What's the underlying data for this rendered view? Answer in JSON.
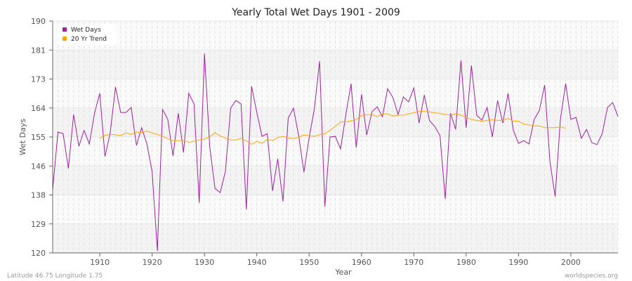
{
  "chart_data": {
    "type": "line",
    "title": "Yearly Total Wet Days 1901 - 2009",
    "xlabel": "Year",
    "ylabel": "Wet Days",
    "xlim": [
      1901,
      2009
    ],
    "ylim": [
      120,
      190
    ],
    "x_ticks": [
      1910,
      1920,
      1930,
      1940,
      1950,
      1960,
      1970,
      1980,
      1990,
      2000
    ],
    "y_ticks": [
      "120",
      "129",
      "138",
      "146",
      "155",
      "164",
      "173",
      "181",
      "190"
    ],
    "grid": true,
    "legend_position": "top-left",
    "series": [
      {
        "name": "Wet Days",
        "color": "#a020a0",
        "start_year": 1901,
        "values": [
          139.1,
          156.5,
          156,
          145.5,
          161.8,
          152.2,
          157,
          152.9,
          162.2,
          168.2,
          149.1,
          156.3,
          170.1,
          162.4,
          162.4,
          163.9,
          152.5,
          157.8,
          152.9,
          144.6,
          120.6,
          163.3,
          160.3,
          149.3,
          162.2,
          150.3,
          168.2,
          165,
          135.1,
          180.2,
          152.2,
          139.5,
          138.2,
          144.6,
          163.7,
          166,
          165,
          133.1,
          170.3,
          162.4,
          155.2,
          156,
          138.7,
          148.4,
          135.5,
          160.7,
          163.7,
          155.4,
          144.4,
          154.8,
          163.5,
          177.9,
          134,
          155,
          155.2,
          151.4,
          161.6,
          171.1,
          151.8,
          167.9,
          155.6,
          162.6,
          164.1,
          161.1,
          169.6,
          166.9,
          161.8,
          167.1,
          165.6,
          169.8,
          159.2,
          167.7,
          159.9,
          158.2,
          155.4,
          136.3,
          162.2,
          157.3,
          178.1,
          157.8,
          176.6,
          161.6,
          160.1,
          163.9,
          155,
          166,
          159.2,
          168.2,
          157.1,
          153.1,
          153.9,
          152.9,
          160.3,
          163.1,
          170.7,
          147.6,
          137,
          160.3,
          171.1,
          160.3,
          160.9,
          154.6,
          157.3,
          153.3,
          152.7,
          156,
          163.9,
          165.4,
          161.2
        ]
      },
      {
        "name": "20 Yr Trend",
        "color": "#ffa500",
        "start_year": 1910,
        "values": [
          154.6,
          155.5,
          155.8,
          155.7,
          155.4,
          156.3,
          155.8,
          156.5,
          156.3,
          156.8,
          156.2,
          155.8,
          155.2,
          154.5,
          153.9,
          153.9,
          154,
          153.4,
          153.7,
          154.1,
          154.4,
          155,
          156.3,
          155.3,
          154.7,
          154.1,
          154.1,
          154.6,
          153.8,
          152.8,
          153.7,
          153.1,
          154.3,
          153.9,
          154.8,
          155.2,
          154.7,
          154.5,
          154.9,
          155.6,
          155.4,
          155.2,
          155.7,
          156,
          157,
          158.2,
          159.5,
          159.6,
          159.8,
          160.3,
          161.5,
          161.7,
          161.8,
          161.1,
          162,
          162,
          161.3,
          161.6,
          161.6,
          162,
          162.3,
          162.7,
          162.7,
          162.6,
          162.3,
          162.1,
          161.8,
          161.6,
          162,
          161.6,
          160.9,
          160.3,
          160,
          159.7,
          160,
          160.2,
          160,
          160,
          160.6,
          159.8,
          159.8,
          158.9,
          158.7,
          158.4,
          158.3,
          157.8,
          157.8,
          157.8,
          158,
          157.6
        ]
      }
    ]
  },
  "footer": {
    "location": "Latitude 46.75 Longitude 1.75",
    "source": "worldspecies.org"
  }
}
